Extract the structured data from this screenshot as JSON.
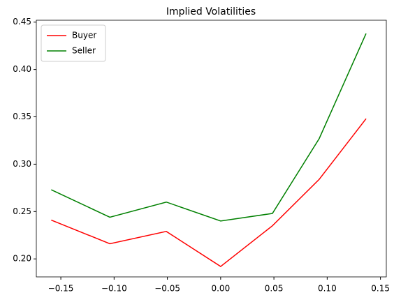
{
  "chart_data": {
    "type": "line",
    "title": "Implied Volatilities",
    "x": [
      -0.159,
      -0.104,
      -0.051,
      0.0,
      0.0486,
      0.0925,
      0.1365
    ],
    "series": [
      {
        "name": "Buyer",
        "color": "#ff0000",
        "values": [
          0.241,
          0.216,
          0.229,
          0.192,
          0.235,
          0.284,
          0.348
        ]
      },
      {
        "name": "Seller",
        "color": "#008000",
        "values": [
          0.273,
          0.244,
          0.26,
          0.24,
          0.248,
          0.327,
          0.438
        ]
      }
    ],
    "xlim": [
      -0.173,
      0.1555
    ],
    "ylim": [
      0.181,
      0.452
    ],
    "xticks": [
      {
        "value": -0.15,
        "label": "−0.15"
      },
      {
        "value": -0.1,
        "label": "−0.10"
      },
      {
        "value": -0.05,
        "label": "−0.05"
      },
      {
        "value": 0,
        "label": "0.00"
      },
      {
        "value": 0.05,
        "label": "0.05"
      },
      {
        "value": 0.1,
        "label": "0.10"
      },
      {
        "value": 0.15,
        "label": "0.15"
      }
    ],
    "yticks": [
      {
        "value": 0.2,
        "label": "0.20"
      },
      {
        "value": 0.25,
        "label": "0.25"
      },
      {
        "value": 0.3,
        "label": "0.30"
      },
      {
        "value": 0.35,
        "label": "0.35"
      },
      {
        "value": 0.4,
        "label": "0.40"
      },
      {
        "value": 0.45,
        "label": "0.45"
      }
    ],
    "legend": "upper left"
  }
}
